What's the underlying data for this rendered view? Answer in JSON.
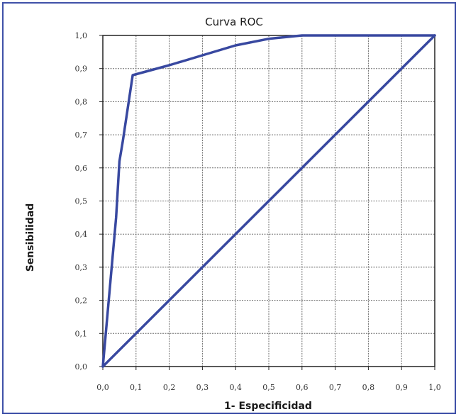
{
  "chart_data": {
    "type": "line",
    "title": "Curva ROC",
    "xlabel": "1- Especificidad",
    "ylabel": "Sensibilidad",
    "xlim": [
      0,
      1
    ],
    "ylim": [
      0,
      1
    ],
    "x_ticks": [
      "0,0",
      "0,1",
      "0,2",
      "0,3",
      "0,4",
      "0,5",
      "0,6",
      "0,7",
      "0,8",
      "0,9",
      "1,0"
    ],
    "y_ticks": [
      "0,0",
      "0,1",
      "0,2",
      "0,3",
      "0,4",
      "0,5",
      "0,6",
      "0,7",
      "0,8",
      "0,9",
      "1,0"
    ],
    "grid": true,
    "series": [
      {
        "x": [
          0.0,
          0.04,
          0.05,
          0.06,
          0.09,
          0.2,
          0.3,
          0.4,
          0.5,
          0.6,
          1.0
        ],
        "y": [
          0.0,
          0.45,
          0.62,
          0.68,
          0.88,
          0.91,
          0.94,
          0.97,
          0.99,
          1.0,
          1.0
        ]
      },
      {
        "x": [
          0.0,
          1.0
        ],
        "y": [
          0.0,
          1.0
        ]
      }
    ],
    "line_color": "#3848a0",
    "grid_color": "#6b6b6b"
  }
}
